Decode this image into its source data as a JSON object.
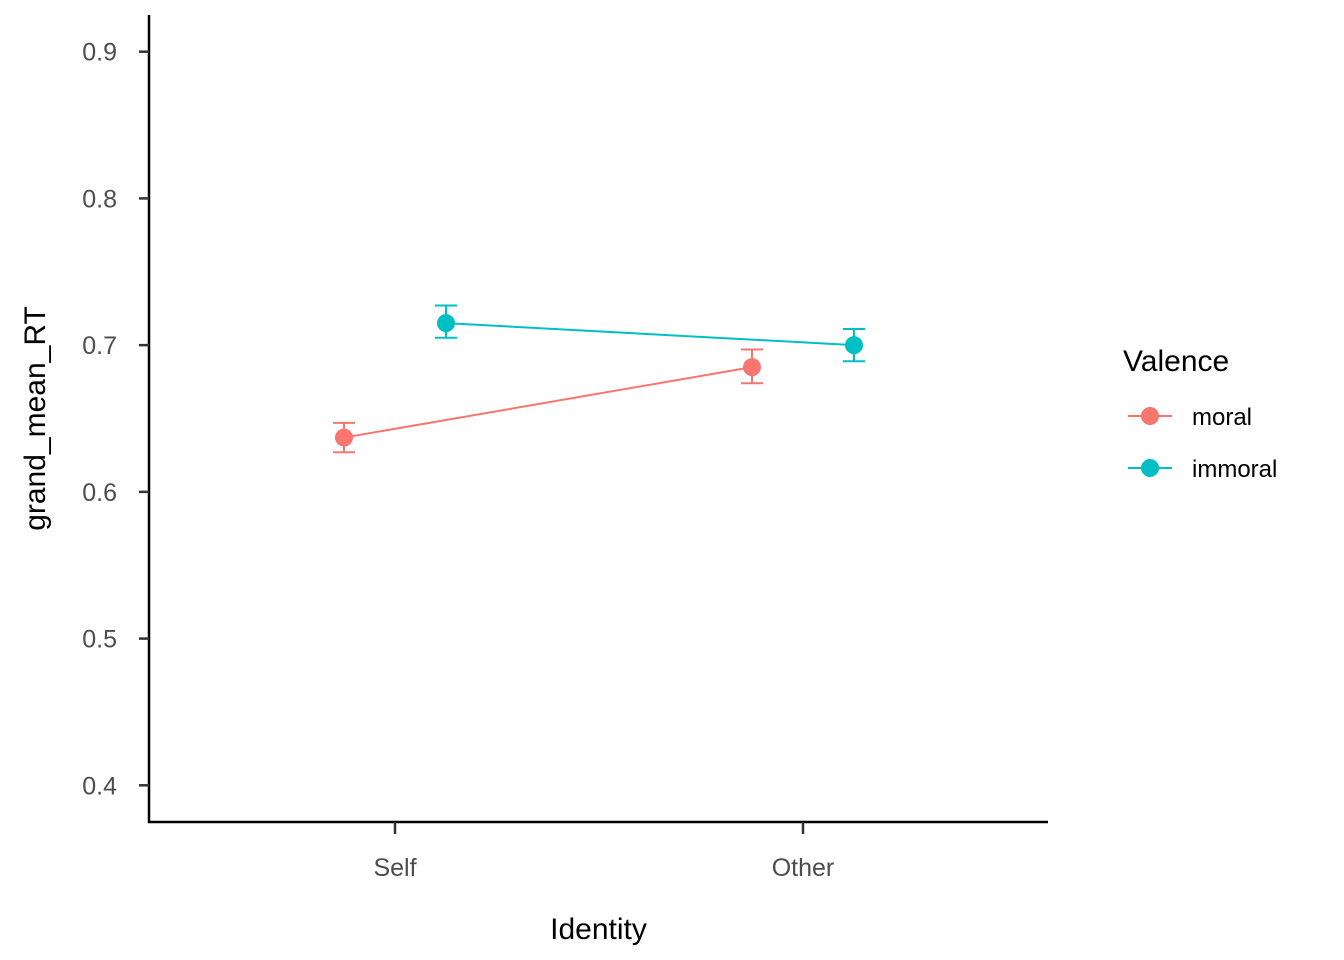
{
  "chart_data": {
    "type": "line",
    "xlabel": "Identity",
    "ylabel": "grand_mean_RT",
    "categories": [
      "Self",
      "Other"
    ],
    "ylim": [
      0.375,
      0.925
    ],
    "y_ticks": [
      0.4,
      0.5,
      0.6,
      0.7,
      0.8,
      0.9
    ],
    "y_tick_labels": [
      "0.4",
      "0.5",
      "0.6",
      "0.7",
      "0.8",
      "0.9"
    ],
    "grid": false,
    "legend": {
      "title": "Valence",
      "position": "right"
    },
    "series": [
      {
        "name": "moral",
        "color": "#F8766D",
        "values": [
          0.637,
          0.685
        ],
        "error_lower": [
          0.627,
          0.674
        ],
        "error_upper": [
          0.647,
          0.697
        ]
      },
      {
        "name": "immoral",
        "color": "#00BFC4",
        "values": [
          0.715,
          0.7
        ],
        "error_lower": [
          0.705,
          0.689
        ],
        "error_upper": [
          0.727,
          0.711
        ]
      }
    ]
  }
}
